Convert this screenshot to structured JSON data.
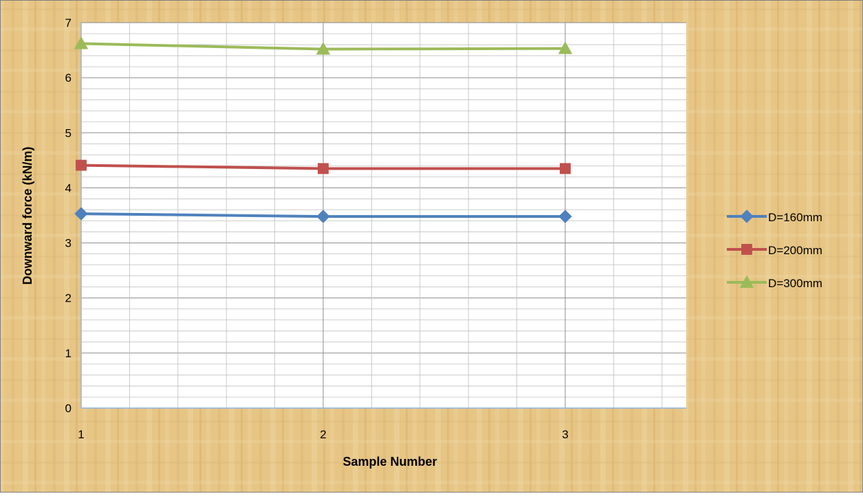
{
  "chart_data": {
    "type": "line",
    "title": "",
    "xlabel": "Sample Number",
    "ylabel": "Downward force (kN/m)",
    "x": [
      1,
      2,
      3
    ],
    "x_tick_labels": [
      "1",
      "2",
      "3"
    ],
    "y_tick_labels": [
      "0",
      "1",
      "2",
      "3",
      "4",
      "5",
      "6",
      "7"
    ],
    "ylim": [
      0,
      7
    ],
    "xlim": [
      1,
      3.5
    ],
    "grid": true,
    "legend_position": "right",
    "series": [
      {
        "name": "D=160mm",
        "values": [
          3.53,
          3.48,
          3.48
        ],
        "color": "#4F81BD",
        "marker": "diamond"
      },
      {
        "name": "D=200mm",
        "values": [
          4.41,
          4.35,
          4.35
        ],
        "color": "#C0504D",
        "marker": "square"
      },
      {
        "name": "D=300mm",
        "values": [
          6.62,
          6.52,
          6.53
        ],
        "color": "#9BBB59",
        "marker": "triangle"
      }
    ]
  },
  "colors": {
    "background": "#E8C98A",
    "plot_area": "#FFFFFF",
    "grid": "#A6A6A6",
    "axis": "#8EB4E3"
  }
}
